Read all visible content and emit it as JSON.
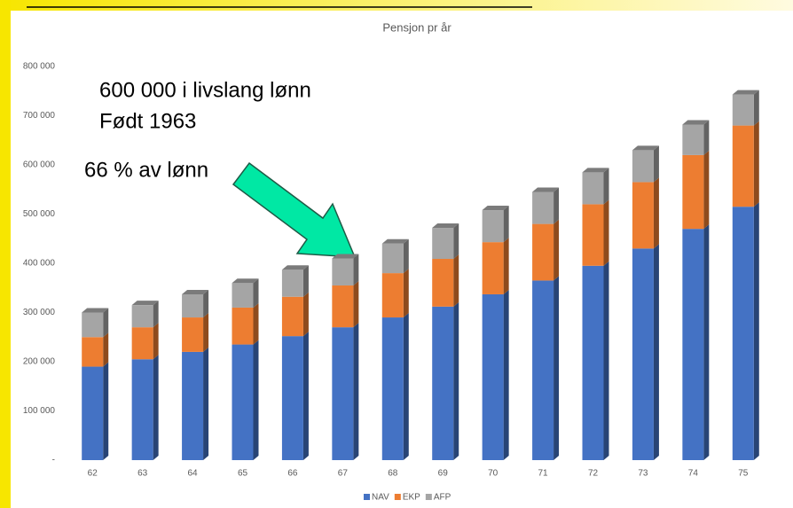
{
  "chart_data": {
    "type": "bar",
    "stacked": true,
    "title": "Pensjon pr år",
    "annotations": [
      "600 000 i livslang lønn",
      "Født 1963",
      "66 % av lønn"
    ],
    "categories": [
      "62",
      "63",
      "64",
      "65",
      "66",
      "67",
      "68",
      "69",
      "70",
      "71",
      "72",
      "73",
      "74",
      "75"
    ],
    "series": [
      {
        "name": "NAV",
        "color": "#4472c4",
        "values": [
          190000,
          205000,
          220000,
          235000,
          252000,
          270000,
          290000,
          312000,
          337000,
          365000,
          395000,
          430000,
          470000,
          515000
        ]
      },
      {
        "name": "EKP",
        "color": "#ed7d31",
        "values": [
          60000,
          65000,
          70000,
          75000,
          80000,
          85000,
          90000,
          97000,
          106000,
          115000,
          125000,
          135000,
          150000,
          165000
        ]
      },
      {
        "name": "AFP",
        "color": "#a5a5a5",
        "values": [
          50000,
          45000,
          47000,
          50000,
          55000,
          55000,
          60000,
          63000,
          65000,
          65000,
          65000,
          65000,
          62000,
          63000
        ]
      }
    ],
    "ylim": [
      0,
      800000
    ],
    "yticks": [
      {
        "value": 0,
        "label": "-"
      },
      {
        "value": 100000,
        "label": "100 000"
      },
      {
        "value": 200000,
        "label": "200 000"
      },
      {
        "value": 300000,
        "label": "300 000"
      },
      {
        "value": 400000,
        "label": "400 000"
      },
      {
        "value": 500000,
        "label": "500 000"
      },
      {
        "value": 600000,
        "label": "600 000"
      },
      {
        "value": 700000,
        "label": "700 000"
      },
      {
        "value": 800000,
        "label": "800 000"
      }
    ],
    "grid": false,
    "legend": "bottom"
  }
}
